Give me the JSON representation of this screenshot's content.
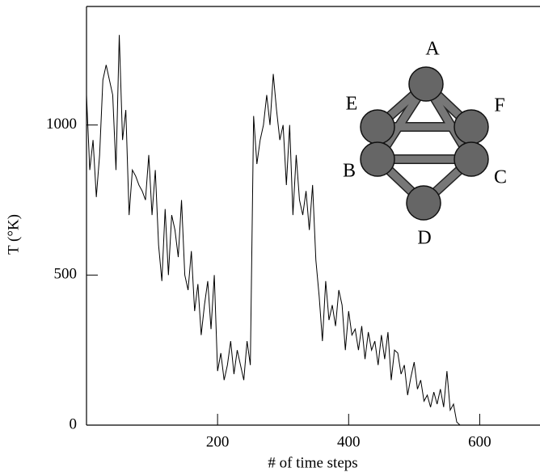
{
  "chart_data": {
    "type": "line",
    "xlabel": "# of time steps",
    "ylabel": "T (°K)",
    "x": [
      0,
      5,
      10,
      15,
      20,
      25,
      30,
      35,
      40,
      45,
      50,
      55,
      60,
      65,
      70,
      75,
      80,
      85,
      90,
      95,
      100,
      105,
      110,
      115,
      120,
      125,
      130,
      135,
      140,
      145,
      150,
      155,
      160,
      165,
      170,
      175,
      180,
      185,
      190,
      195,
      200,
      205,
      210,
      215,
      220,
      225,
      230,
      235,
      240,
      245,
      250,
      255,
      260,
      265,
      270,
      275,
      280,
      285,
      290,
      295,
      300,
      305,
      310,
      315,
      320,
      325,
      330,
      335,
      340,
      345,
      350,
      355,
      360,
      365,
      370,
      375,
      380,
      385,
      390,
      395,
      400,
      405,
      410,
      415,
      420,
      425,
      430,
      435,
      440,
      445,
      450,
      455,
      460,
      465,
      470,
      475,
      480,
      485,
      490,
      495,
      500,
      505,
      510,
      515,
      520,
      525,
      530,
      535,
      540,
      545,
      550,
      555,
      560,
      565,
      570,
      575,
      580,
      585
    ],
    "values": [
      1100,
      850,
      950,
      760,
      900,
      1150,
      1200,
      1150,
      1100,
      850,
      1300,
      950,
      1050,
      700,
      850,
      830,
      800,
      780,
      750,
      900,
      700,
      850,
      600,
      480,
      720,
      500,
      700,
      650,
      560,
      750,
      500,
      450,
      580,
      380,
      470,
      300,
      400,
      480,
      320,
      500,
      180,
      240,
      150,
      200,
      280,
      170,
      250,
      200,
      150,
      280,
      200,
      1030,
      870,
      950,
      1000,
      1100,
      1000,
      1170,
      1050,
      950,
      1000,
      800,
      1000,
      700,
      900,
      750,
      700,
      780,
      650,
      800,
      550,
      430,
      280,
      480,
      350,
      400,
      330,
      450,
      400,
      250,
      380,
      300,
      320,
      250,
      330,
      220,
      310,
      250,
      280,
      200,
      300,
      220,
      310,
      150,
      250,
      240,
      170,
      200,
      100,
      160,
      210,
      120,
      150,
      80,
      100,
      60,
      110,
      70,
      120,
      60,
      180,
      50,
      70,
      10,
      0,
      0,
      0,
      0
    ],
    "color": "#000000",
    "xlim": [
      0,
      692
    ],
    "ylim": [
      0,
      1395
    ],
    "xticks": [
      200,
      400,
      600
    ],
    "yticks": [
      0,
      500,
      1000
    ],
    "grid": false,
    "annotations": [
      "A",
      "E",
      "F",
      "B",
      "C",
      "D"
    ]
  }
}
